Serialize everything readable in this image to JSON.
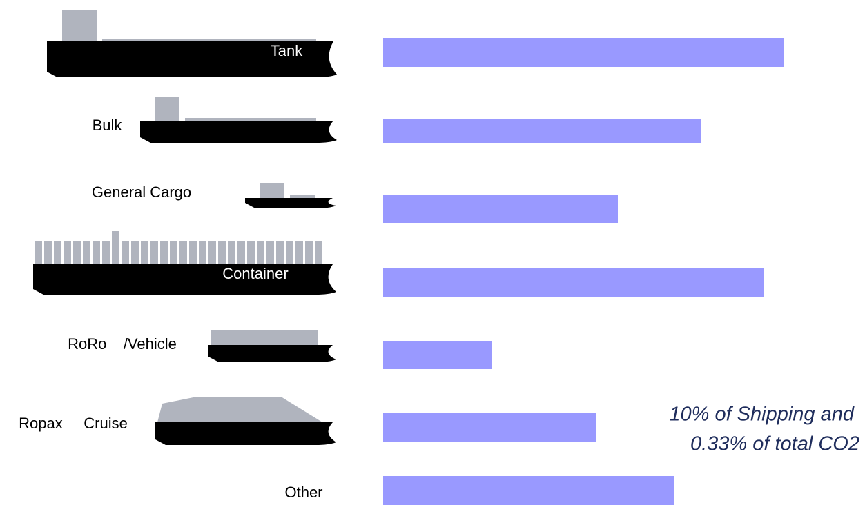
{
  "chart_data": {
    "type": "bar",
    "orientation": "horizontal",
    "categories": [
      "Tank",
      "Bulk",
      "General Cargo",
      "Container",
      "RoRo    /Vehicle",
      "Ropax     Cruise",
      "Other"
    ],
    "values": [
      581,
      460,
      340,
      551,
      158,
      308,
      422
    ],
    "color": "#9999ff",
    "xlim": [
      0,
      600
    ],
    "annotation": [
      "10% of Shipping and",
      "0.33% of total CO2"
    ]
  }
}
